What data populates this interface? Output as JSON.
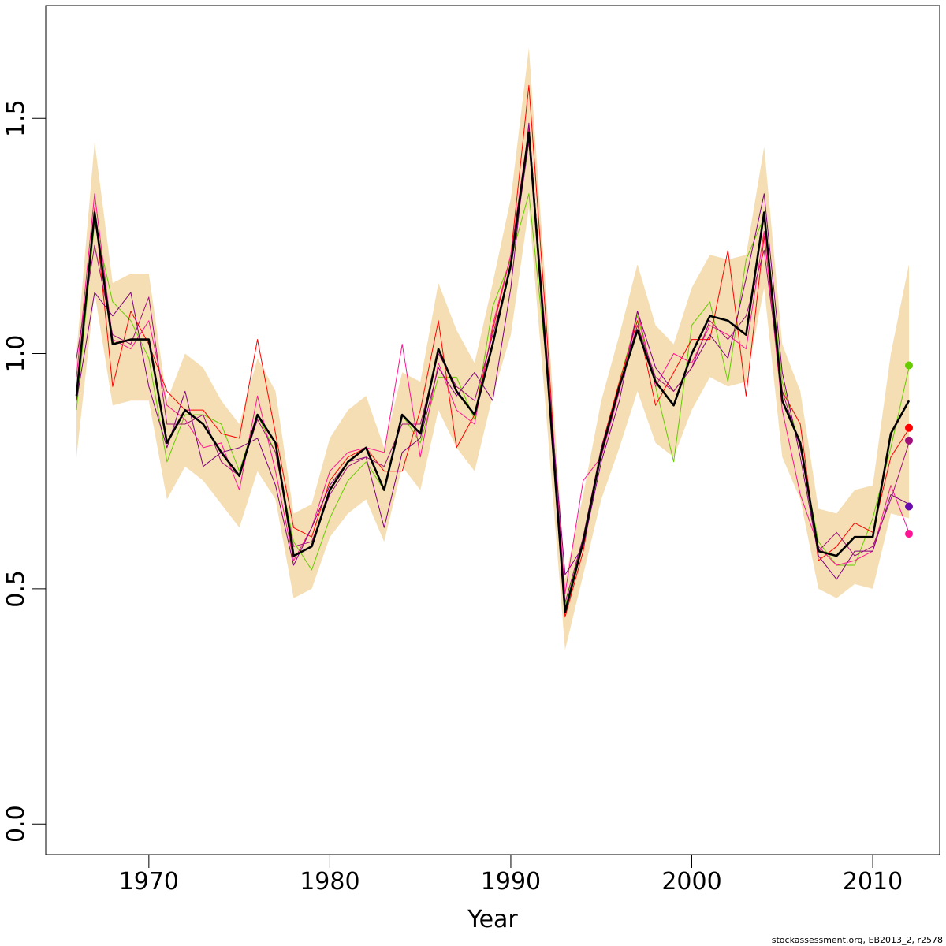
{
  "chart_data": {
    "type": "line",
    "xlabel": "Year",
    "ylabel": "",
    "xlim": [
      1964.3,
      2013.7
    ],
    "ylim": [
      -0.065,
      1.74
    ],
    "x_ticks": [
      1970,
      1980,
      1990,
      2000,
      2010
    ],
    "y_ticks": [
      0.0,
      0.5,
      1.0,
      1.5
    ],
    "x_tick_labels": [
      "1970",
      "1980",
      "1990",
      "2000",
      "2010"
    ],
    "y_tick_labels": [
      "0.0",
      "0.5",
      "1.0",
      "1.5"
    ],
    "grid": false,
    "footer": "stockassessment.org, EB2013_2, r2578",
    "x": [
      1966,
      1967,
      1968,
      1969,
      1970,
      1971,
      1972,
      1973,
      1974,
      1975,
      1976,
      1977,
      1978,
      1979,
      1980,
      1981,
      1982,
      1983,
      1984,
      1985,
      1986,
      1987,
      1988,
      1989,
      1990,
      1991,
      1992,
      1993,
      1994,
      1995,
      1996,
      1997,
      1998,
      1999,
      2000,
      2001,
      2002,
      2003,
      2004,
      2005,
      2006,
      2007,
      2008,
      2009,
      2010,
      2011,
      2012
    ],
    "band": {
      "color": "#f5deb3",
      "upper": [
        1.0,
        1.45,
        1.15,
        1.17,
        1.17,
        0.9,
        1.0,
        0.97,
        0.9,
        0.85,
        0.99,
        0.92,
        0.66,
        0.68,
        0.82,
        0.88,
        0.91,
        0.8,
        0.96,
        0.94,
        1.15,
        1.05,
        0.98,
        1.15,
        1.33,
        1.65,
        1.1,
        0.52,
        0.7,
        0.9,
        1.04,
        1.19,
        1.06,
        1.02,
        1.14,
        1.21,
        1.2,
        1.21,
        1.44,
        1.02,
        0.92,
        0.67,
        0.66,
        0.71,
        0.72,
        1.0,
        1.19
      ],
      "lower": [
        0.78,
        1.13,
        0.89,
        0.9,
        0.9,
        0.69,
        0.76,
        0.73,
        0.68,
        0.63,
        0.75,
        0.69,
        0.48,
        0.5,
        0.61,
        0.66,
        0.69,
        0.6,
        0.76,
        0.71,
        0.88,
        0.8,
        0.75,
        0.91,
        1.04,
        1.31,
        0.85,
        0.37,
        0.53,
        0.69,
        0.8,
        0.92,
        0.81,
        0.78,
        0.88,
        0.95,
        0.93,
        0.94,
        1.14,
        0.78,
        0.69,
        0.5,
        0.48,
        0.51,
        0.5,
        0.66,
        0.65
      ]
    },
    "series": [
      {
        "color": "#000000",
        "width": 2.6,
        "values": [
          0.91,
          1.3,
          1.02,
          1.03,
          1.03,
          0.81,
          0.88,
          0.85,
          0.79,
          0.74,
          0.87,
          0.81,
          0.57,
          0.59,
          0.71,
          0.77,
          0.8,
          0.71,
          0.87,
          0.83,
          1.01,
          0.92,
          0.87,
          1.02,
          1.19,
          1.47,
          0.97,
          0.45,
          0.6,
          0.79,
          0.93,
          1.05,
          0.94,
          0.89,
          1.0,
          1.08,
          1.07,
          1.04,
          1.3,
          0.9,
          0.81,
          0.58,
          0.57,
          0.61,
          0.61,
          0.83,
          0.9
        ]
      },
      {
        "color": "#66cc00",
        "width": 1,
        "values": [
          0.88,
          1.28,
          1.11,
          1.07,
          0.99,
          0.77,
          0.87,
          0.87,
          0.85,
          0.75,
          0.87,
          0.79,
          0.6,
          0.54,
          0.65,
          0.73,
          0.77,
          0.71,
          0.87,
          0.81,
          0.95,
          0.95,
          0.86,
          1.1,
          1.2,
          1.34,
          0.97,
          0.46,
          0.61,
          0.79,
          0.94,
          1.08,
          0.93,
          0.77,
          1.06,
          1.11,
          0.94,
          1.2,
          1.29,
          0.94,
          0.8,
          0.6,
          0.55,
          0.55,
          0.65,
          0.8,
          0.97
        ]
      },
      {
        "color": "#ff0000",
        "width": 1,
        "values": [
          0.9,
          1.31,
          0.93,
          1.09,
          1.02,
          0.92,
          0.88,
          0.88,
          0.83,
          0.82,
          1.03,
          0.83,
          0.63,
          0.61,
          0.73,
          0.78,
          0.8,
          0.75,
          0.75,
          0.88,
          1.07,
          0.8,
          0.87,
          1.05,
          1.21,
          1.57,
          1.04,
          0.44,
          0.58,
          0.8,
          0.94,
          1.07,
          0.89,
          0.96,
          1.03,
          1.03,
          1.22,
          0.91,
          1.25,
          0.92,
          0.85,
          0.56,
          0.59,
          0.64,
          0.62,
          0.78,
          0.84
        ]
      },
      {
        "color": "#ff1493",
        "width": 1,
        "values": [
          0.95,
          1.34,
          1.03,
          1.01,
          1.07,
          0.89,
          0.86,
          0.8,
          0.81,
          0.71,
          0.91,
          0.75,
          0.56,
          0.63,
          0.75,
          0.79,
          0.8,
          0.79,
          1.02,
          0.78,
          0.98,
          0.88,
          0.85,
          1.06,
          1.21,
          1.48,
          1.0,
          0.49,
          0.73,
          0.78,
          0.92,
          1.09,
          0.93,
          1.0,
          0.98,
          1.06,
          1.04,
          1.01,
          1.26,
          0.88,
          0.7,
          0.59,
          0.55,
          0.56,
          0.58,
          0.72,
          0.62
        ]
      },
      {
        "color": "#800080",
        "width": 1,
        "values": [
          0.9,
          1.13,
          1.08,
          1.13,
          0.93,
          0.8,
          0.92,
          0.76,
          0.79,
          0.8,
          0.82,
          0.72,
          0.55,
          0.63,
          0.72,
          0.77,
          0.78,
          0.63,
          0.79,
          0.82,
          0.97,
          0.91,
          0.96,
          0.9,
          1.14,
          1.49,
          0.98,
          0.53,
          0.59,
          0.77,
          0.9,
          1.09,
          0.97,
          0.92,
          0.97,
          1.04,
          0.99,
          1.16,
          1.34,
          0.96,
          0.78,
          0.57,
          0.52,
          0.58,
          0.58,
          0.7,
          0.68
        ]
      },
      {
        "color": "#a0107a",
        "width": 1,
        "values": [
          0.99,
          1.23,
          1.04,
          1.02,
          1.12,
          0.85,
          0.85,
          0.87,
          0.77,
          0.74,
          0.86,
          0.79,
          0.59,
          0.6,
          0.7,
          0.76,
          0.78,
          0.76,
          0.85,
          0.85,
          1.0,
          0.93,
          0.9,
          1.04,
          1.18,
          1.45,
          0.99,
          0.47,
          0.61,
          0.8,
          0.93,
          1.06,
          0.95,
          0.92,
          0.97,
          1.07,
          1.03,
          1.08,
          1.22,
          0.92,
          0.8,
          0.58,
          0.62,
          0.57,
          0.59,
          0.69,
          0.81
        ]
      }
    ],
    "end_points": [
      {
        "color": "#66cc00",
        "value": 0.975
      },
      {
        "color": "#ff0000",
        "value": 0.842
      },
      {
        "color": "#a0107a",
        "value": 0.815
      },
      {
        "color": "#6a0dad",
        "value": 0.675
      },
      {
        "color": "#ff1493",
        "value": 0.617
      }
    ]
  }
}
